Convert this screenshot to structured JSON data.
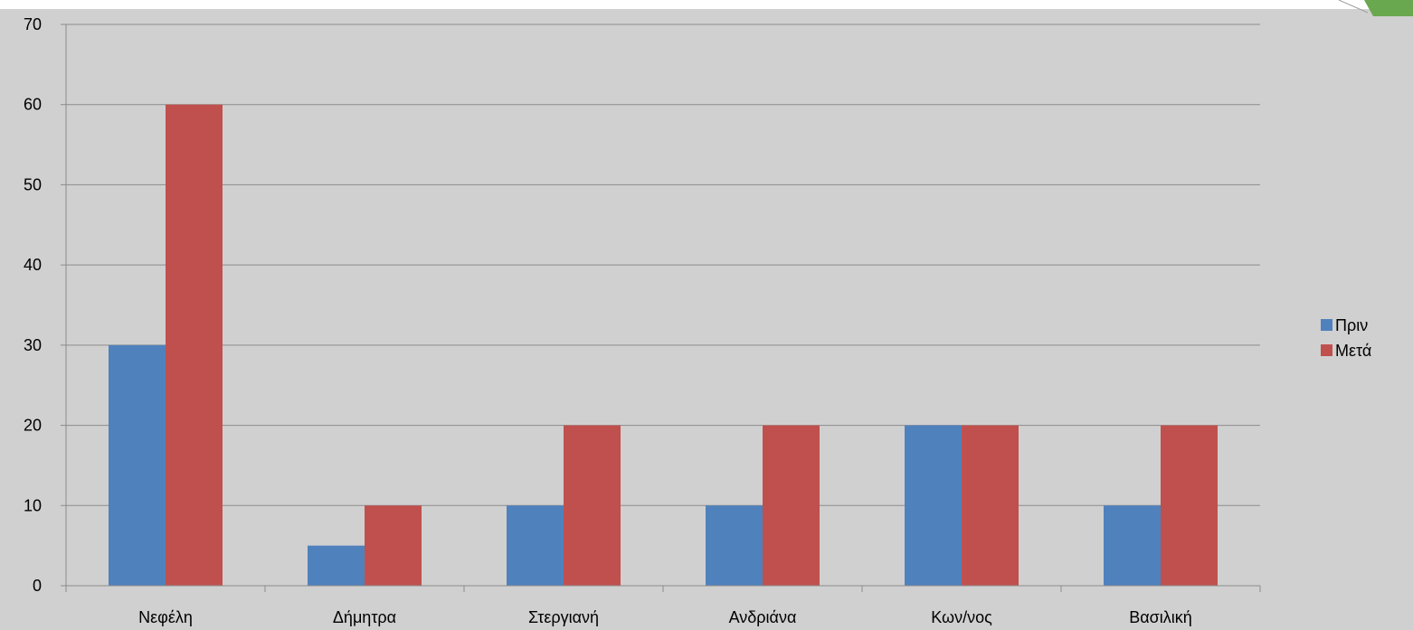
{
  "colors": {
    "background": "#d0d0d0",
    "gridline": "#8c8c8c",
    "axis": "#8c8c8c",
    "corner_accent": "#6aa84f"
  },
  "chart_data": {
    "type": "bar",
    "title": "",
    "xlabel": "",
    "ylabel": "",
    "categories": [
      "Νεφέλη",
      "Δήμητρα",
      "Στεργιανή",
      "Ανδριάνα",
      "Κων/νος",
      "Βασιλική"
    ],
    "series": [
      {
        "name": "Πριν",
        "color": "#4f81bd",
        "values": [
          30,
          5,
          10,
          10,
          20,
          10
        ]
      },
      {
        "name": "Μετά",
        "color": "#c0504d",
        "values": [
          60,
          10,
          20,
          20,
          20,
          20
        ]
      }
    ],
    "ylim": [
      0,
      70
    ],
    "yticks": [
      0,
      10,
      20,
      30,
      40,
      50,
      60,
      70
    ],
    "grid": true,
    "legend_position": "right"
  }
}
